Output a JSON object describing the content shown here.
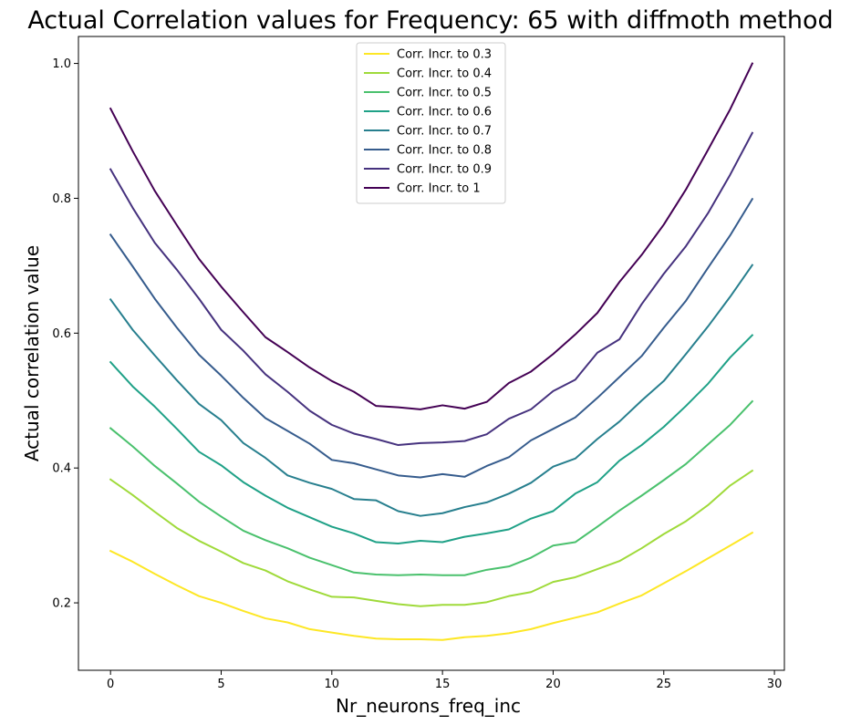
{
  "chart_data": {
    "type": "line",
    "title": "Actual Correlation values for Frequency:  65 with diffmoth method",
    "xlabel": "Nr_neurons_freq_inc",
    "ylabel": "Actual correlation value",
    "xlim": [
      -1.45,
      30.45
    ],
    "ylim": [
      0.1,
      1.04
    ],
    "xticks": [
      0,
      5,
      10,
      15,
      20,
      25,
      30
    ],
    "yticks": [
      0.2,
      0.4,
      0.6,
      0.8,
      1.0
    ],
    "xtick_labels": [
      "0",
      "5",
      "10",
      "15",
      "20",
      "25",
      "30"
    ],
    "ytick_labels": [
      "0.2",
      "0.4",
      "0.6",
      "0.8",
      "1.0"
    ],
    "legend_position": "upper center",
    "grid": false,
    "x": [
      0,
      1,
      2,
      3,
      4,
      5,
      6,
      7,
      8,
      9,
      10,
      11,
      12,
      13,
      14,
      15,
      16,
      17,
      18,
      19,
      20,
      21,
      22,
      23,
      24,
      25,
      26,
      27,
      28,
      29
    ],
    "series": [
      {
        "name": "Corr. Incr. to 0.3",
        "color": "#fde725",
        "values": [
          0.277,
          0.261,
          0.243,
          0.226,
          0.21,
          0.2,
          0.188,
          0.177,
          0.171,
          0.161,
          0.156,
          0.151,
          0.147,
          0.146,
          0.146,
          0.145,
          0.149,
          0.151,
          0.155,
          0.161,
          0.17,
          0.178,
          0.186,
          0.199,
          0.211,
          0.229,
          0.247,
          0.266,
          0.285,
          0.304
        ]
      },
      {
        "name": "Corr. Incr. to 0.4",
        "color": "#9fda3a",
        "values": [
          0.383,
          0.36,
          0.335,
          0.311,
          0.292,
          0.276,
          0.259,
          0.248,
          0.232,
          0.22,
          0.209,
          0.208,
          0.203,
          0.198,
          0.195,
          0.197,
          0.197,
          0.201,
          0.21,
          0.216,
          0.231,
          0.238,
          0.25,
          0.262,
          0.281,
          0.302,
          0.321,
          0.345,
          0.374,
          0.396
        ]
      },
      {
        "name": "Corr. Incr. to 0.5",
        "color": "#4ac16d",
        "values": [
          0.459,
          0.432,
          0.403,
          0.377,
          0.35,
          0.328,
          0.307,
          0.293,
          0.281,
          0.267,
          0.256,
          0.245,
          0.242,
          0.241,
          0.242,
          0.241,
          0.241,
          0.249,
          0.254,
          0.267,
          0.285,
          0.29,
          0.313,
          0.337,
          0.359,
          0.382,
          0.406,
          0.435,
          0.464,
          0.499
        ]
      },
      {
        "name": "Corr. Incr. to 0.6",
        "color": "#1fa187",
        "values": [
          0.557,
          0.521,
          0.491,
          0.458,
          0.424,
          0.404,
          0.379,
          0.359,
          0.341,
          0.327,
          0.313,
          0.303,
          0.29,
          0.288,
          0.292,
          0.29,
          0.298,
          0.303,
          0.309,
          0.325,
          0.336,
          0.362,
          0.379,
          0.411,
          0.434,
          0.461,
          0.492,
          0.525,
          0.564,
          0.597
        ]
      },
      {
        "name": "Corr. Incr. to 0.7",
        "color": "#277f8e",
        "values": [
          0.65,
          0.605,
          0.567,
          0.53,
          0.495,
          0.471,
          0.437,
          0.415,
          0.389,
          0.378,
          0.369,
          0.354,
          0.352,
          0.336,
          0.329,
          0.333,
          0.342,
          0.349,
          0.362,
          0.378,
          0.402,
          0.414,
          0.443,
          0.469,
          0.5,
          0.529,
          0.569,
          0.61,
          0.654,
          0.701
        ]
      },
      {
        "name": "Corr. Incr. to 0.8",
        "color": "#365c8d",
        "values": [
          0.746,
          0.699,
          0.651,
          0.608,
          0.568,
          0.537,
          0.504,
          0.474,
          0.455,
          0.436,
          0.412,
          0.407,
          0.398,
          0.389,
          0.386,
          0.391,
          0.387,
          0.403,
          0.416,
          0.441,
          0.458,
          0.475,
          0.504,
          0.535,
          0.566,
          0.608,
          0.648,
          0.697,
          0.745,
          0.799
        ]
      },
      {
        "name": "Corr. Incr. to 0.9",
        "color": "#46327e",
        "values": [
          0.843,
          0.786,
          0.734,
          0.694,
          0.651,
          0.605,
          0.574,
          0.539,
          0.513,
          0.485,
          0.464,
          0.451,
          0.443,
          0.434,
          0.437,
          0.438,
          0.44,
          0.45,
          0.473,
          0.487,
          0.514,
          0.531,
          0.571,
          0.591,
          0.643,
          0.688,
          0.729,
          0.778,
          0.835,
          0.897
        ]
      },
      {
        "name": "Corr. Incr. to 1",
        "color": "#440154",
        "values": [
          0.933,
          0.87,
          0.811,
          0.76,
          0.71,
          0.669,
          0.631,
          0.594,
          0.572,
          0.549,
          0.529,
          0.513,
          0.492,
          0.49,
          0.487,
          0.493,
          0.488,
          0.498,
          0.526,
          0.543,
          0.569,
          0.598,
          0.63,
          0.676,
          0.716,
          0.761,
          0.813,
          0.872,
          0.932,
          1.0
        ]
      }
    ]
  }
}
